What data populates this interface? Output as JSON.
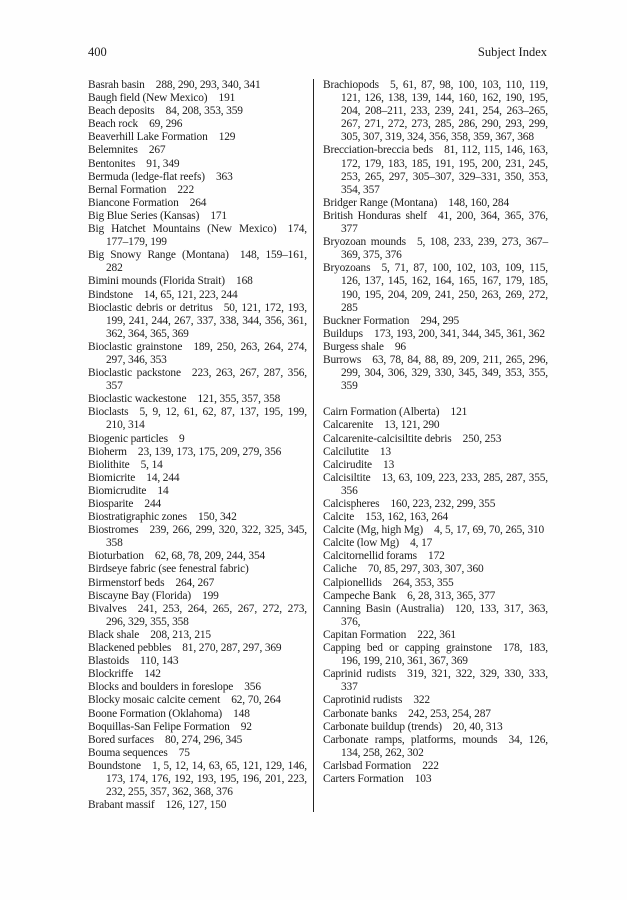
{
  "header": {
    "page_number": "400",
    "title": "Subject Index"
  },
  "index": {
    "left_column": [
      {
        "term": "Basrah basin",
        "pages": "288, 290, 293, 340, 341"
      },
      {
        "term": "Baugh field (New Mexico)",
        "pages": "191"
      },
      {
        "term": "Beach deposits",
        "pages": "84, 208, 353, 359"
      },
      {
        "term": "Beach rock",
        "pages": "69, 296"
      },
      {
        "term": "Beaverhill Lake Formation",
        "pages": "129"
      },
      {
        "term": "Belemnites",
        "pages": "267"
      },
      {
        "term": "Bentonites",
        "pages": "91, 349"
      },
      {
        "term": "Bermuda (ledge-flat reefs)",
        "pages": "363"
      },
      {
        "term": "Bernal Formation",
        "pages": "222"
      },
      {
        "term": "Biancone Formation",
        "pages": "264"
      },
      {
        "term": "Big Blue Series (Kansas)",
        "pages": "171"
      },
      {
        "term": "Big Hatchet Mountains (New Mexico)",
        "pages": "174, 177–179, 199"
      },
      {
        "term": "Big Snowy Range (Montana)",
        "pages": "148, 159–161, 282"
      },
      {
        "term": "Bimini mounds (Florida Strait)",
        "pages": "168"
      },
      {
        "term": "Bindstone",
        "pages": "14, 65, 121, 223, 244"
      },
      {
        "term": "Bioclastic debris or detritus",
        "pages": "50, 121, 172, 193, 199, 241, 244, 267, 337, 338, 344, 356, 361, 362, 364, 365, 369"
      },
      {
        "term": "Bioclastic grainstone",
        "pages": "189, 250, 263, 264, 274, 297, 346, 353"
      },
      {
        "term": "Bioclastic packstone",
        "pages": "223, 263, 267, 287, 356, 357"
      },
      {
        "term": "Bioclastic wackestone",
        "pages": "121, 355, 357, 358"
      },
      {
        "term": "Bioclasts",
        "pages": "5, 9, 12, 61, 62, 87, 137, 195, 199, 210, 314"
      },
      {
        "term": "Biogenic particles",
        "pages": "9"
      },
      {
        "term": "Bioherm",
        "pages": "23, 139, 173, 175, 209, 279, 356"
      },
      {
        "term": "Biolithite",
        "pages": "5, 14"
      },
      {
        "term": "Biomicrite",
        "pages": "14, 244"
      },
      {
        "term": "Biomicrudite",
        "pages": "14"
      },
      {
        "term": "Biosparite",
        "pages": "244"
      },
      {
        "term": "Biostratigraphic zones",
        "pages": "150, 342"
      },
      {
        "term": "Biostromes",
        "pages": "239, 266, 299, 320, 322, 325, 345, 358"
      },
      {
        "term": "Bioturbation",
        "pages": "62, 68, 78, 209, 244, 354"
      },
      {
        "term": "Birdseye fabric (see fenestral fabric)",
        "pages": ""
      },
      {
        "term": "Birmenstorf beds",
        "pages": "264, 267"
      },
      {
        "term": "Biscayne Bay (Florida)",
        "pages": "199"
      },
      {
        "term": "Bivalves",
        "pages": "241, 253, 264, 265, 267, 272, 273, 296, 329, 355, 358"
      },
      {
        "term": "Black shale",
        "pages": "208, 213, 215"
      },
      {
        "term": "Blackened pebbles",
        "pages": "81, 270, 287, 297, 369"
      },
      {
        "term": "Blastoids",
        "pages": "110, 143"
      },
      {
        "term": "Blockriffe",
        "pages": "142"
      },
      {
        "term": "Blocks and boulders in foreslope",
        "pages": "356"
      },
      {
        "term": "Blocky mosaic calcite cement",
        "pages": "62, 70, 264"
      },
      {
        "term": "Boone Formation (Oklahoma)",
        "pages": "148"
      },
      {
        "term": "Boquillas-San Felipe Formation",
        "pages": "92"
      },
      {
        "term": "Bored surfaces",
        "pages": "80, 274, 296, 345"
      },
      {
        "term": "Bouma sequences",
        "pages": "75"
      },
      {
        "term": "Boundstone",
        "pages": "1, 5, 12, 14, 63, 65, 121, 129, 146, 173, 174, 176, 192, 193, 195, 196, 201, 223, 232, 255, 357, 362, 368, 376"
      },
      {
        "term": "Brabant massif",
        "pages": "126, 127, 150"
      }
    ],
    "right_column": [
      {
        "term": "Brachiopods",
        "pages": "5, 61, 87, 98, 100, 103, 110, 119, 121, 126, 138, 139, 144, 160, 162, 190, 195, 204, 208–211, 233, 239, 241, 254, 263–265, 267, 271, 272, 273, 285, 286, 290, 293, 299, 305, 307, 319, 324, 356, 358, 359, 367, 368"
      },
      {
        "term": "Brecciation-breccia beds",
        "pages": "81, 112, 115, 146, 163, 172, 179, 183, 185, 191, 195, 200, 231, 245, 253, 265, 297, 305–307, 329–331, 350, 353, 354, 357"
      },
      {
        "term": "Bridger Range (Montana)",
        "pages": "148, 160, 284"
      },
      {
        "term": "British Honduras shelf",
        "pages": "41, 200, 364, 365, 376, 377"
      },
      {
        "term": "Bryozoan mounds",
        "pages": "5, 108, 233, 239, 273, 367–369, 375, 376"
      },
      {
        "term": "Bryozoans",
        "pages": "5, 71, 87, 100, 102, 103, 109, 115, 126, 137, 145, 162, 164, 165, 167, 179, 185, 190, 195, 204, 209, 241, 250, 263, 269, 272, 285"
      },
      {
        "term": "Buckner Formation",
        "pages": "294, 295"
      },
      {
        "term": "Buildups",
        "pages": "173, 193, 200, 341, 344, 345, 361, 362"
      },
      {
        "term": "Burgess shale",
        "pages": "96"
      },
      {
        "term": "Burrows",
        "pages": "63, 78, 84, 88, 89, 209, 211, 265, 296, 299, 304, 306, 329, 330, 345, 349, 353, 355, 359"
      },
      {
        "term": "Cairn Formation (Alberta)",
        "pages": "121",
        "section_break": true
      },
      {
        "term": "Calcarenite",
        "pages": "13, 121, 290"
      },
      {
        "term": "Calcarenite-calcisiltite debris",
        "pages": "250, 253"
      },
      {
        "term": "Calcilutite",
        "pages": "13"
      },
      {
        "term": "Calcirudite",
        "pages": "13"
      },
      {
        "term": "Calcisiltite",
        "pages": "13, 63, 109, 223, 233, 285, 287, 355, 356"
      },
      {
        "term": "Calcispheres",
        "pages": "160, 223, 232, 299, 355"
      },
      {
        "term": "Calcite",
        "pages": "153, 162, 163, 264"
      },
      {
        "term": "Calcite (Mg, high Mg)",
        "pages": "4, 5, 17, 69, 70, 265, 310"
      },
      {
        "term": "Calcite (low Mg)",
        "pages": "4, 17"
      },
      {
        "term": "Calcitornellid forams",
        "pages": "172"
      },
      {
        "term": "Caliche",
        "pages": "70, 85, 297, 303, 307, 360"
      },
      {
        "term": "Calpionellids",
        "pages": "264, 353, 355"
      },
      {
        "term": "Campeche Bank",
        "pages": "6, 28, 313, 365, 377"
      },
      {
        "term": "Canning Basin (Australia)",
        "pages": "120, 133, 317, 363, 376,"
      },
      {
        "term": "Capitan Formation",
        "pages": "222, 361"
      },
      {
        "term": "Capping bed or capping grainstone",
        "pages": "178, 183, 196, 199, 210, 361, 367, 369"
      },
      {
        "term": "Caprinid rudists",
        "pages": "319, 321, 322, 329, 330, 333, 337"
      },
      {
        "term": "Caprotinid rudists",
        "pages": "322"
      },
      {
        "term": "Carbonate banks",
        "pages": "242, 253, 254, 287"
      },
      {
        "term": "Carbonate buildup (trends)",
        "pages": "20, 40, 313"
      },
      {
        "term": "Carbonate ramps, platforms, mounds",
        "pages": "34, 126, 134, 258, 262, 302"
      },
      {
        "term": "Carlsbad Formation",
        "pages": "222"
      },
      {
        "term": "Carters Formation",
        "pages": "103"
      }
    ]
  }
}
